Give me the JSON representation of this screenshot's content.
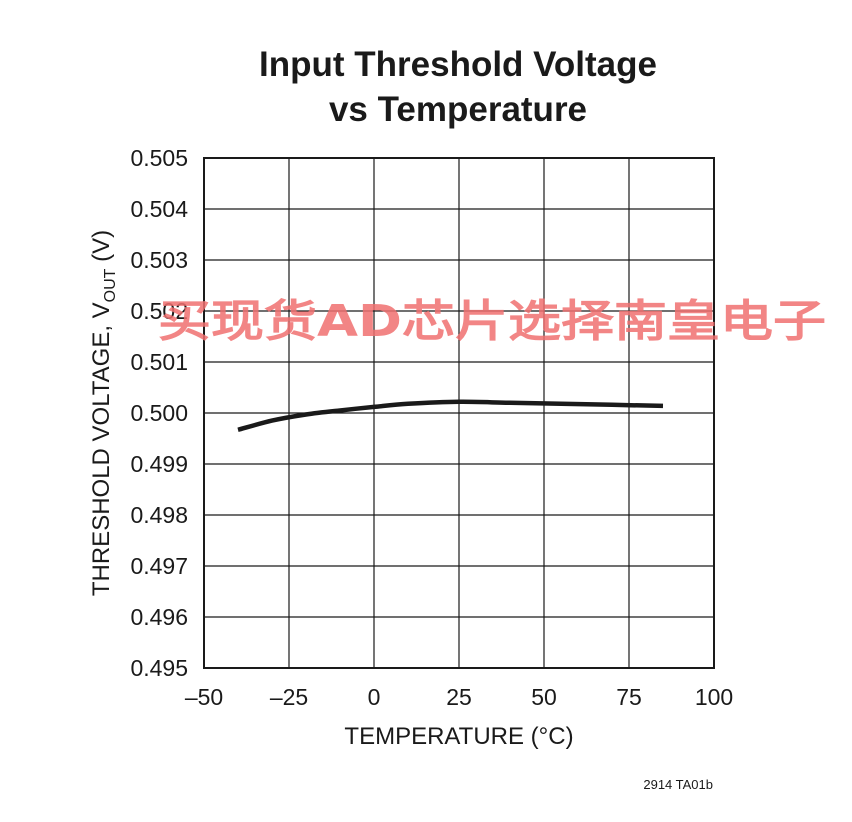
{
  "chart_data": {
    "type": "line",
    "title": [
      "Input Threshold Voltage",
      "vs Temperature"
    ],
    "xlabel": "TEMPERATURE (°C)",
    "ylabel": {
      "main": "THRESHOLD VOLTAGE, V",
      "subscript": "OUT",
      "suffix": " (V)"
    },
    "xlim": [
      -50,
      100
    ],
    "ylim": [
      0.495,
      0.505
    ],
    "x_ticks": [
      -50,
      -25,
      0,
      25,
      50,
      75,
      100
    ],
    "x_tick_labels": [
      "–50",
      "–25",
      "0",
      "25",
      "50",
      "75",
      "100"
    ],
    "y_ticks": [
      0.495,
      0.496,
      0.497,
      0.498,
      0.499,
      0.5,
      0.501,
      0.502,
      0.503,
      0.504,
      0.505
    ],
    "y_tick_labels": [
      "0.495",
      "0.496",
      "0.497",
      "0.498",
      "0.499",
      "0.500",
      "0.501",
      "0.502",
      "0.503",
      "0.504",
      "0.505"
    ],
    "grid": true,
    "series": [
      {
        "color": "#1a1a1a",
        "x": [
          -40,
          -30,
          -20,
          -10,
          0,
          10,
          25,
          40,
          55,
          70,
          85
        ],
        "y": [
          0.49967,
          0.49985,
          0.49997,
          0.50005,
          0.50012,
          0.50018,
          0.50022,
          0.5002,
          0.50018,
          0.50016,
          0.50014
        ]
      }
    ]
  },
  "figure_id": "2914 TA01b",
  "watermark": "买现货AD芯片选择南皇电子"
}
